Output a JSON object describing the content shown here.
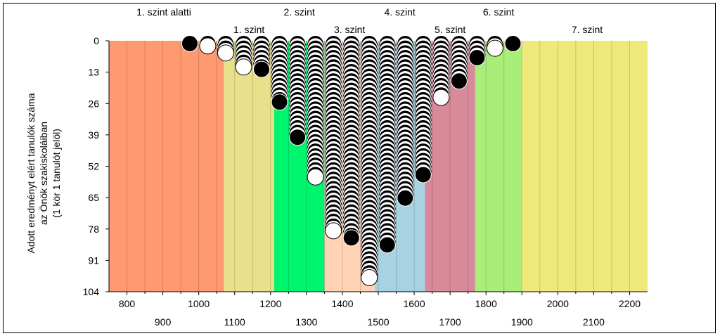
{
  "chart_data": {
    "type": "scatter",
    "ylabel_lines": [
      "Adott eredményt elért tanulók száma",
      "az Önök szakiskoláiban",
      "(1 kör 1 tanulót jelöl)"
    ],
    "xlim": [
      750,
      2250
    ],
    "ylim": [
      0,
      104
    ],
    "x_ticks_upper": [
      800,
      1000,
      1200,
      1400,
      1600,
      1800,
      2000,
      2200
    ],
    "x_ticks_lower": [
      900,
      1100,
      1300,
      1500,
      1700,
      1900,
      2100
    ],
    "y_ticks": [
      0,
      13,
      26,
      39,
      52,
      65,
      78,
      91,
      104
    ],
    "levels": [
      {
        "name": "1. szint alatti",
        "from": 750,
        "to": 1070,
        "color": "#FF9970",
        "label_row": "top"
      },
      {
        "name": "1. szint",
        "from": 1070,
        "to": 1210,
        "color": "#E8E08A",
        "label_row": "bottom"
      },
      {
        "name": "2. szint",
        "from": 1210,
        "to": 1350,
        "color": "#00F56E",
        "label_row": "top"
      },
      {
        "name": "3. szint",
        "from": 1350,
        "to": 1490,
        "color": "#FFD3B4",
        "label_row": "bottom"
      },
      {
        "name": "4. szint",
        "from": 1490,
        "to": 1630,
        "color": "#A7D2E3",
        "label_row": "top"
      },
      {
        "name": "5. szint",
        "from": 1630,
        "to": 1770,
        "color": "#D8899A",
        "label_row": "bottom"
      },
      {
        "name": "6. szint",
        "from": 1770,
        "to": 1900,
        "color": "#A9EE78",
        "label_row": "top"
      },
      {
        "name": "7. szint",
        "from": 1900,
        "to": 2250,
        "color": "#EEE97A",
        "label_row": "bottom"
      }
    ],
    "columns": [
      {
        "x": 975,
        "count": 1
      },
      {
        "x": 1025,
        "count": 2
      },
      {
        "x": 1075,
        "count": 5
      },
      {
        "x": 1125,
        "count": 11
      },
      {
        "x": 1175,
        "count": 12
      },
      {
        "x": 1225,
        "count": 26
      },
      {
        "x": 1275,
        "count": 41
      },
      {
        "x": 1325,
        "count": 58
      },
      {
        "x": 1375,
        "count": 81
      },
      {
        "x": 1425,
        "count": 84
      },
      {
        "x": 1475,
        "count": 101
      },
      {
        "x": 1525,
        "count": 87
      },
      {
        "x": 1575,
        "count": 67
      },
      {
        "x": 1625,
        "count": 57
      },
      {
        "x": 1675,
        "count": 24
      },
      {
        "x": 1725,
        "count": 17
      },
      {
        "x": 1775,
        "count": 7
      },
      {
        "x": 1825,
        "count": 3
      },
      {
        "x": 1875,
        "count": 1
      }
    ]
  }
}
